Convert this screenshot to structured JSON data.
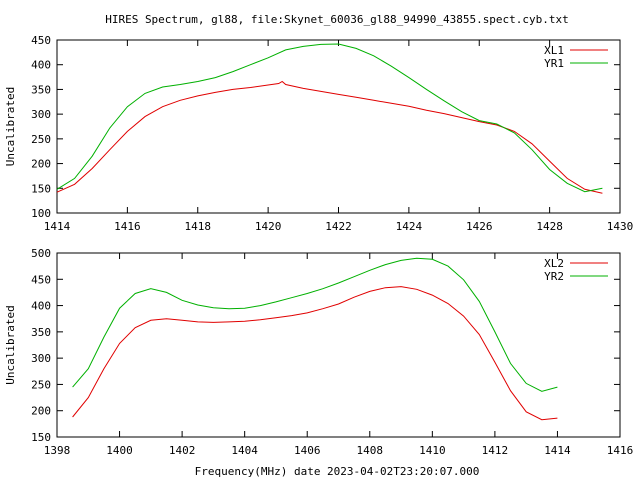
{
  "title": "HIRES Spectrum, gl88, file:Skynet_60036_gl88_94990_43855.spect.cyb.txt",
  "footer": "Frequency(MHz) date 2023-04-02T23:20:07.000",
  "chart_data": [
    {
      "type": "line",
      "ylabel": "Uncalibrated",
      "xlim": [
        1414,
        1430
      ],
      "ylim": [
        100,
        450
      ],
      "xticks": [
        1414,
        1416,
        1418,
        1420,
        1422,
        1424,
        1426,
        1428,
        1430
      ],
      "yticks": [
        100,
        150,
        200,
        250,
        300,
        350,
        400,
        450
      ],
      "legend": "top-right",
      "series": [
        {
          "name": "XL1",
          "color": "#e00000",
          "x": [
            1414.0,
            1414.5,
            1415.0,
            1415.5,
            1416.0,
            1416.5,
            1417.0,
            1417.5,
            1418.0,
            1418.5,
            1419.0,
            1419.5,
            1420.0,
            1420.3,
            1420.4,
            1420.5,
            1421.0,
            1421.5,
            1422.0,
            1422.5,
            1423.0,
            1423.5,
            1424.0,
            1424.5,
            1425.0,
            1425.5,
            1426.0,
            1426.5,
            1427.0,
            1427.5,
            1428.0,
            1428.5,
            1429.0,
            1429.5
          ],
          "y": [
            142,
            158,
            190,
            228,
            265,
            295,
            315,
            328,
            337,
            344,
            350,
            354,
            359,
            362,
            366,
            360,
            352,
            346,
            340,
            334,
            328,
            322,
            316,
            308,
            301,
            293,
            285,
            278,
            265,
            240,
            205,
            170,
            148,
            140
          ]
        },
        {
          "name": "YR1",
          "color": "#00b000",
          "x": [
            1414.0,
            1414.5,
            1415.0,
            1415.5,
            1416.0,
            1416.5,
            1417.0,
            1417.5,
            1418.0,
            1418.5,
            1419.0,
            1419.5,
            1420.0,
            1420.5,
            1421.0,
            1421.5,
            1422.0,
            1422.5,
            1423.0,
            1423.5,
            1424.0,
            1424.5,
            1425.0,
            1425.5,
            1426.0,
            1426.5,
            1427.0,
            1427.5,
            1428.0,
            1428.5,
            1429.0,
            1429.5
          ],
          "y": [
            148,
            170,
            215,
            272,
            315,
            342,
            355,
            360,
            366,
            374,
            386,
            400,
            414,
            430,
            437,
            441,
            442,
            433,
            418,
            397,
            374,
            350,
            327,
            305,
            287,
            280,
            262,
            228,
            188,
            160,
            143,
            150
          ]
        }
      ]
    },
    {
      "type": "line",
      "ylabel": "Uncalibrated",
      "xlim": [
        1398,
        1416
      ],
      "ylim": [
        150,
        500
      ],
      "xticks": [
        1398,
        1400,
        1402,
        1404,
        1406,
        1408,
        1410,
        1412,
        1414,
        1416
      ],
      "yticks": [
        150,
        200,
        250,
        300,
        350,
        400,
        450,
        500
      ],
      "legend": "top-right",
      "series": [
        {
          "name": "XL2",
          "color": "#e00000",
          "x": [
            1398.5,
            1399.0,
            1399.5,
            1400.0,
            1400.5,
            1401.0,
            1401.5,
            1402.0,
            1402.5,
            1403.0,
            1403.5,
            1404.0,
            1404.5,
            1405.0,
            1405.5,
            1406.0,
            1406.5,
            1407.0,
            1407.5,
            1408.0,
            1408.5,
            1409.0,
            1409.5,
            1410.0,
            1410.5,
            1411.0,
            1411.5,
            1412.0,
            1412.5,
            1413.0,
            1413.5,
            1414.0
          ],
          "y": [
            188,
            225,
            280,
            328,
            358,
            372,
            375,
            372,
            369,
            368,
            369,
            370,
            373,
            377,
            381,
            386,
            394,
            403,
            416,
            427,
            434,
            436,
            431,
            420,
            404,
            380,
            345,
            292,
            238,
            198,
            183,
            186
          ]
        },
        {
          "name": "YR2",
          "color": "#00b000",
          "x": [
            1398.5,
            1399.0,
            1399.5,
            1400.0,
            1400.5,
            1401.0,
            1401.5,
            1402.0,
            1402.5,
            1403.0,
            1403.5,
            1404.0,
            1404.5,
            1405.0,
            1405.5,
            1406.0,
            1406.5,
            1407.0,
            1407.5,
            1408.0,
            1408.5,
            1409.0,
            1409.5,
            1410.0,
            1410.5,
            1411.0,
            1411.5,
            1412.0,
            1412.5,
            1413.0,
            1413.5,
            1414.0
          ],
          "y": [
            245,
            280,
            340,
            395,
            423,
            432,
            425,
            410,
            401,
            396,
            394,
            395,
            400,
            407,
            415,
            423,
            432,
            443,
            455,
            467,
            478,
            486,
            490,
            488,
            475,
            449,
            408,
            350,
            290,
            252,
            237,
            245
          ]
        }
      ]
    }
  ]
}
